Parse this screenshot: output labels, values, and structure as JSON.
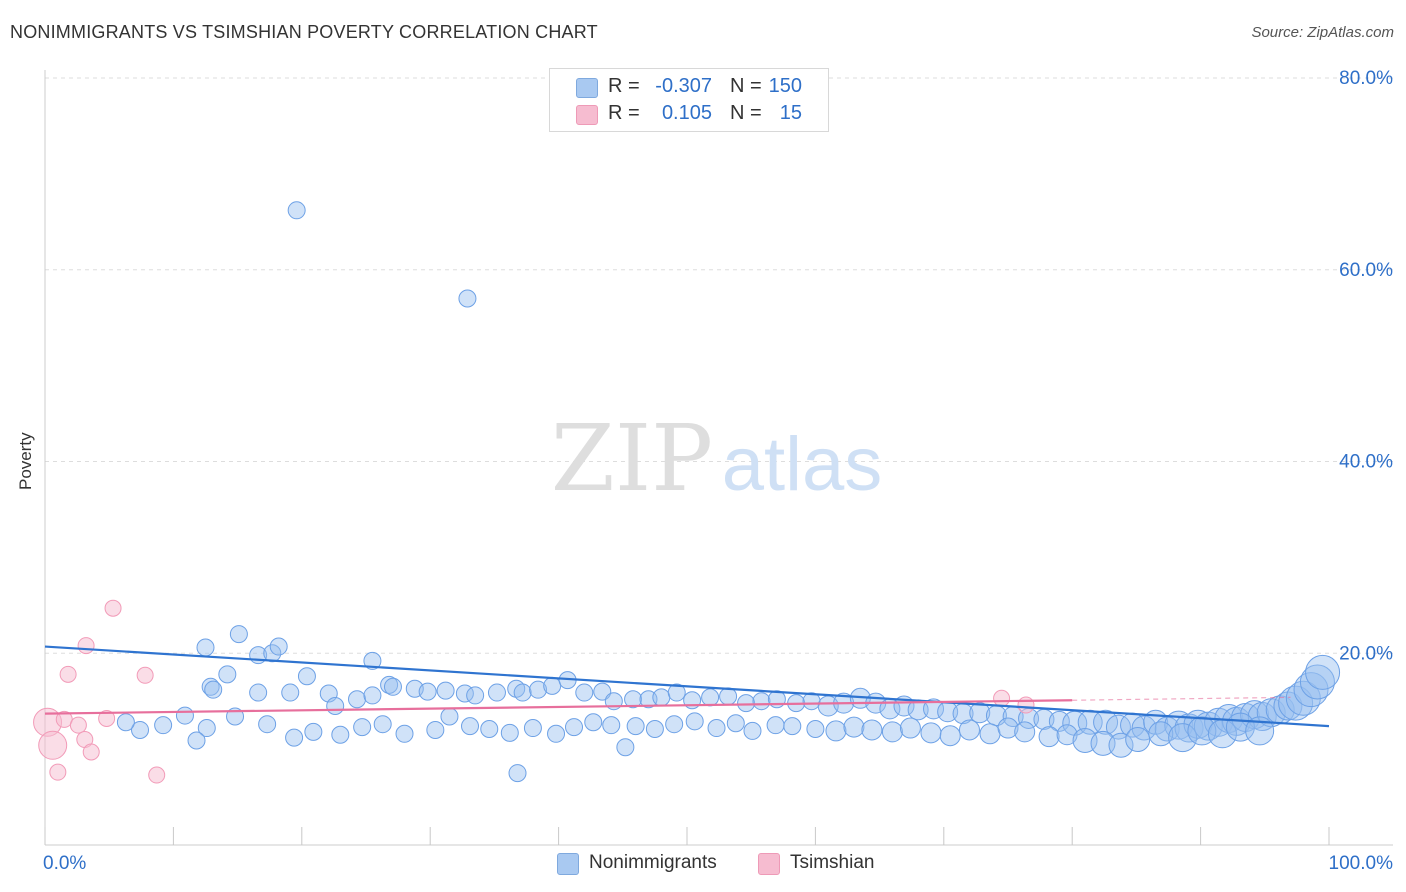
{
  "title": "NONIMMIGRANTS VS TSIMSHIAN POVERTY CORRELATION CHART",
  "source": "Source: ZipAtlas.com",
  "watermark": {
    "zip": "ZIP",
    "atlas": "atlas"
  },
  "legend": {
    "rows": [
      {
        "r_label": "R =",
        "r_value": "-0.307",
        "n_label": "N =",
        "n_value": "150",
        "color": "#a9c9f1"
      },
      {
        "r_label": "R =",
        "r_value": "0.105",
        "n_label": "N =",
        "n_value": "15",
        "color": "#f6bcd0"
      }
    ]
  },
  "chart_data": {
    "type": "scatter",
    "title": "NONIMMIGRANTS VS TSIMSHIAN POVERTY CORRELATION CHART",
    "xlabel": "",
    "ylabel": "Poverty",
    "xlim": [
      0,
      100
    ],
    "ylim": [
      0,
      80
    ],
    "x_tick_labels": [
      "0.0%",
      "100.0%"
    ],
    "y_tick_labels": [
      "20.0%",
      "40.0%",
      "60.0%",
      "80.0%"
    ],
    "y_ticks": [
      20,
      40,
      60,
      80
    ],
    "colors": {
      "nonimmigrants": "#6da1e6",
      "tsimshian": "#f29bb8",
      "blue_line": "#2f74d0",
      "pink_line": "#e76f9c"
    },
    "series": [
      {
        "name": "Nonimmigrants",
        "trend": {
          "x": [
            0,
            100
          ],
          "y": [
            20.7,
            12.4
          ]
        },
        "points": [
          [
            19.6,
            66.2
          ],
          [
            32.9,
            57.0
          ],
          [
            12.5,
            20.6
          ],
          [
            15.1,
            22.0
          ],
          [
            16.6,
            19.8
          ],
          [
            17.7,
            20.0
          ],
          [
            18.2,
            20.7
          ],
          [
            25.5,
            19.2
          ],
          [
            20.4,
            17.6
          ],
          [
            14.2,
            17.8
          ],
          [
            12.9,
            16.5
          ],
          [
            13.1,
            16.2
          ],
          [
            16.6,
            15.9
          ],
          [
            19.1,
            15.9
          ],
          [
            22.1,
            15.8
          ],
          [
            24.3,
            15.2
          ],
          [
            25.5,
            15.6
          ],
          [
            26.8,
            16.7
          ],
          [
            27.1,
            16.5
          ],
          [
            28.8,
            16.3
          ],
          [
            29.8,
            16.0
          ],
          [
            31.2,
            16.1
          ],
          [
            32.7,
            15.8
          ],
          [
            33.5,
            15.6
          ],
          [
            35.2,
            15.9
          ],
          [
            36.7,
            16.3
          ],
          [
            37.2,
            15.9
          ],
          [
            38.4,
            16.2
          ],
          [
            39.5,
            16.6
          ],
          [
            40.7,
            17.2
          ],
          [
            42.0,
            15.9
          ],
          [
            43.4,
            16.0
          ],
          [
            44.3,
            15.0
          ],
          [
            45.8,
            15.2
          ],
          [
            47.0,
            15.2
          ],
          [
            48.0,
            15.4
          ],
          [
            49.2,
            15.9
          ],
          [
            50.4,
            15.1
          ],
          [
            51.8,
            15.4
          ],
          [
            53.2,
            15.5
          ],
          [
            54.6,
            14.8
          ],
          [
            55.8,
            15.0
          ],
          [
            57.0,
            15.2
          ],
          [
            58.5,
            14.8
          ],
          [
            59.7,
            15.0
          ],
          [
            61.0,
            14.5
          ],
          [
            62.2,
            14.8
          ],
          [
            63.5,
            15.3
          ],
          [
            64.7,
            14.8
          ],
          [
            65.8,
            14.2
          ],
          [
            66.9,
            14.5
          ],
          [
            68.0,
            14.1
          ],
          [
            69.2,
            14.2
          ],
          [
            70.3,
            13.9
          ],
          [
            71.5,
            13.7
          ],
          [
            72.8,
            13.8
          ],
          [
            74.1,
            13.5
          ],
          [
            75.4,
            13.4
          ],
          [
            76.6,
            13.2
          ],
          [
            77.8,
            13.1
          ],
          [
            79.0,
            12.9
          ],
          [
            80.2,
            12.7
          ],
          [
            81.4,
            12.8
          ],
          [
            82.6,
            12.8
          ],
          [
            83.6,
            12.3
          ],
          [
            84.7,
            12.5
          ],
          [
            85.6,
            12.2
          ],
          [
            86.5,
            12.8
          ],
          [
            87.4,
            12.1
          ],
          [
            88.3,
            12.5
          ],
          [
            89.1,
            12.2
          ],
          [
            89.8,
            12.6
          ],
          [
            90.6,
            12.4
          ],
          [
            91.4,
            12.8
          ],
          [
            92.2,
            13.2
          ],
          [
            92.8,
            12.9
          ],
          [
            93.5,
            13.3
          ],
          [
            94.2,
            13.6
          ],
          [
            94.8,
            13.4
          ],
          [
            95.5,
            13.8
          ],
          [
            96.2,
            14.1
          ],
          [
            96.8,
            14.5
          ],
          [
            97.4,
            14.8
          ],
          [
            98.0,
            15.3
          ],
          [
            98.6,
            16.2
          ],
          [
            99.1,
            17.0
          ],
          [
            99.5,
            18.0
          ],
          [
            12.6,
            12.2
          ],
          [
            14.8,
            13.4
          ],
          [
            17.3,
            12.6
          ],
          [
            19.4,
            11.2
          ],
          [
            20.9,
            11.8
          ],
          [
            23.0,
            11.5
          ],
          [
            24.7,
            12.3
          ],
          [
            26.3,
            12.6
          ],
          [
            28.0,
            11.6
          ],
          [
            30.4,
            12.0
          ],
          [
            31.5,
            13.4
          ],
          [
            33.1,
            12.4
          ],
          [
            34.6,
            12.1
          ],
          [
            36.2,
            11.7
          ],
          [
            38.0,
            12.2
          ],
          [
            39.8,
            11.6
          ],
          [
            41.2,
            12.3
          ],
          [
            42.7,
            12.8
          ],
          [
            44.1,
            12.5
          ],
          [
            46.0,
            12.4
          ],
          [
            47.5,
            12.1
          ],
          [
            49.0,
            12.6
          ],
          [
            50.6,
            12.9
          ],
          [
            52.3,
            12.2
          ],
          [
            53.8,
            12.7
          ],
          [
            55.1,
            11.9
          ],
          [
            56.9,
            12.5
          ],
          [
            58.2,
            12.4
          ],
          [
            60.0,
            12.1
          ],
          [
            61.6,
            11.9
          ],
          [
            63.0,
            12.3
          ],
          [
            64.4,
            12.0
          ],
          [
            66.0,
            11.8
          ],
          [
            67.4,
            12.2
          ],
          [
            69.0,
            11.7
          ],
          [
            70.5,
            11.4
          ],
          [
            72.0,
            12.0
          ],
          [
            73.6,
            11.6
          ],
          [
            75.0,
            12.2
          ],
          [
            76.3,
            11.8
          ],
          [
            78.2,
            11.3
          ],
          [
            79.6,
            11.5
          ],
          [
            81.0,
            10.9
          ],
          [
            82.4,
            10.6
          ],
          [
            83.8,
            10.4
          ],
          [
            85.1,
            11.0
          ],
          [
            86.9,
            11.6
          ],
          [
            88.6,
            11.2
          ],
          [
            90.1,
            11.9
          ],
          [
            91.7,
            11.6
          ],
          [
            93.1,
            12.3
          ],
          [
            94.6,
            11.9
          ],
          [
            7.4,
            12.0
          ],
          [
            10.9,
            13.5
          ],
          [
            6.3,
            12.8
          ],
          [
            9.2,
            12.5
          ],
          [
            22.6,
            14.5
          ],
          [
            11.8,
            10.9
          ],
          [
            36.8,
            7.5
          ],
          [
            45.2,
            10.2
          ]
        ]
      },
      {
        "name": "Tsimshian",
        "trend": {
          "x": [
            0,
            80,
            97
          ],
          "y": [
            13.7,
            15.1,
            15.4
          ]
        },
        "points": [
          [
            0.2,
            12.8
          ],
          [
            0.6,
            10.4
          ],
          [
            1.0,
            7.6
          ],
          [
            1.5,
            13.1
          ],
          [
            1.8,
            17.8
          ],
          [
            2.6,
            12.5
          ],
          [
            3.1,
            11.0
          ],
          [
            3.6,
            9.7
          ],
          [
            4.8,
            13.2
          ],
          [
            5.3,
            24.7
          ],
          [
            3.2,
            20.8
          ],
          [
            7.8,
            17.7
          ],
          [
            8.7,
            7.3
          ],
          [
            74.5,
            15.3
          ],
          [
            76.4,
            14.6
          ]
        ]
      }
    ]
  }
}
